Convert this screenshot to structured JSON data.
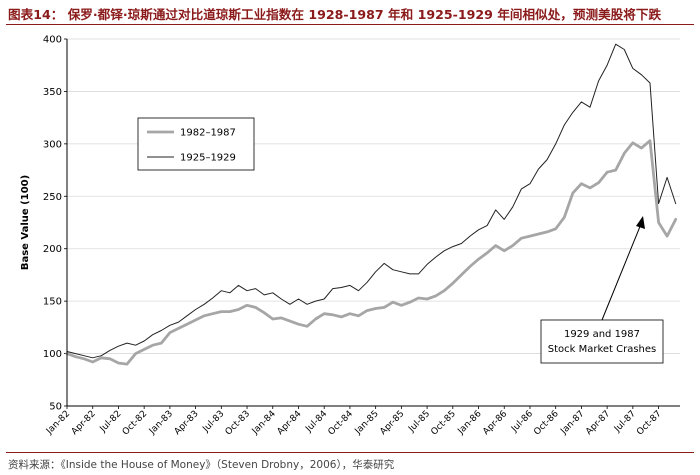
{
  "header": {
    "title": "图表14： 保罗·都铎·琼斯通过对比道琼斯工业指数在 1928-1987 年和 1925-1929 年间相似处，预测美股将下跌",
    "source": "资料来源：《Inside the House of Money》（Steven Drobny，2006），华泰研究"
  },
  "chart_data": {
    "type": "line",
    "title": "",
    "xlabel": "",
    "ylabel": "Base Value (100)",
    "ylim": [
      50,
      400
    ],
    "yticks": [
      50,
      100,
      150,
      200,
      250,
      300,
      350,
      400
    ],
    "categories": [
      "Jan-82",
      "Apr-82",
      "Jul-82",
      "Oct-82",
      "Jan-83",
      "Apr-83",
      "Jul-83",
      "Oct-83",
      "Jan-84",
      "Apr-84",
      "Jul-84",
      "Oct-84",
      "Jan-85",
      "Apr-85",
      "Jul-85",
      "Oct-85",
      "Jan-86",
      "Apr-86",
      "Jul-86",
      "Oct-86",
      "Jan-87",
      "Apr-87",
      "Jul-87",
      "Oct-87"
    ],
    "x_max_month": 71.5,
    "legend_position": "upper-left",
    "series": [
      {
        "name": "1982–1987",
        "color": "#a6a6a6",
        "width": 2.8,
        "x": [
          0,
          1,
          2,
          3,
          4,
          5,
          6,
          7,
          8,
          9,
          10,
          11,
          12,
          13,
          14,
          15,
          16,
          17,
          18,
          19,
          20,
          21,
          22,
          23,
          24,
          25,
          26,
          27,
          28,
          29,
          30,
          31,
          32,
          33,
          34,
          35,
          36,
          37,
          38,
          39,
          40,
          41,
          42,
          43,
          44,
          45,
          46,
          47,
          48,
          49,
          50,
          51,
          52,
          53,
          54,
          55,
          56,
          57,
          58,
          59,
          60,
          61,
          62,
          63,
          64,
          65,
          66,
          67,
          68,
          69,
          70,
          71
        ],
        "values": [
          100,
          97,
          95,
          92,
          96,
          95,
          91,
          90,
          100,
          104,
          108,
          110,
          120,
          124,
          128,
          132,
          136,
          138,
          140,
          140,
          142,
          146,
          144,
          139,
          133,
          134,
          131,
          128,
          126,
          133,
          138,
          137,
          135,
          138,
          136,
          141,
          143,
          144,
          149,
          146,
          149,
          153,
          152,
          155,
          160,
          167,
          175,
          183,
          190,
          196,
          203,
          198,
          203,
          210,
          212,
          214,
          216,
          219,
          230,
          253,
          262,
          258,
          263,
          273,
          275,
          291,
          301,
          296,
          303,
          225,
          212,
          228
        ]
      },
      {
        "name": "1925–1929",
        "color": "#222222",
        "width": 1.0,
        "x": [
          0,
          1,
          2,
          3,
          4,
          5,
          6,
          7,
          8,
          9,
          10,
          11,
          12,
          13,
          14,
          15,
          16,
          17,
          18,
          19,
          20,
          21,
          22,
          23,
          24,
          25,
          26,
          27,
          28,
          29,
          30,
          31,
          32,
          33,
          34,
          35,
          36,
          37,
          38,
          39,
          40,
          41,
          42,
          43,
          44,
          45,
          46,
          47,
          48,
          49,
          50,
          51,
          52,
          53,
          54,
          55,
          56,
          57,
          58,
          59,
          60,
          61,
          62,
          63,
          64,
          65,
          66,
          67,
          68,
          69,
          70,
          71
        ],
        "values": [
          102,
          100,
          98,
          96,
          98,
          103,
          107,
          110,
          108,
          112,
          118,
          122,
          127,
          130,
          136,
          142,
          147,
          153,
          160,
          158,
          165,
          160,
          162,
          156,
          158,
          152,
          147,
          152,
          147,
          150,
          152,
          162,
          163,
          165,
          160,
          168,
          178,
          186,
          180,
          178,
          176,
          176,
          185,
          192,
          198,
          202,
          205,
          212,
          218,
          222,
          237,
          228,
          240,
          257,
          262,
          276,
          285,
          300,
          318,
          330,
          340,
          335,
          360,
          375,
          395,
          390,
          372,
          366,
          358,
          243,
          268,
          243
        ]
      }
    ],
    "annotation": {
      "lines": [
        "1929 and 1987",
        "Stock Market Crashes"
      ]
    }
  }
}
